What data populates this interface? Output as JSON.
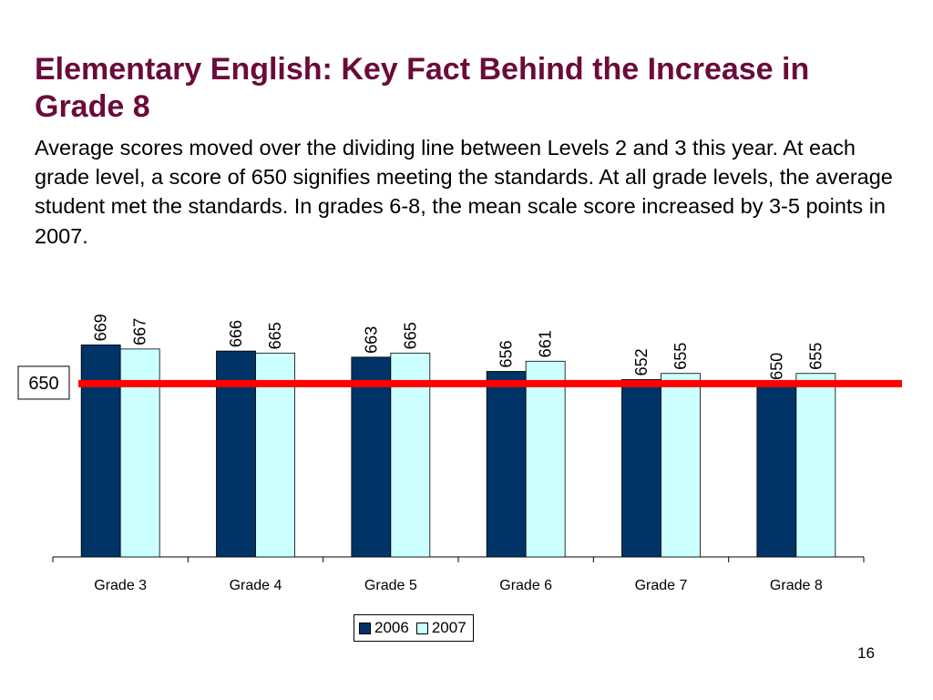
{
  "slide": {
    "title": "Elementary English: Key Fact Behind the Increase in Grade 8",
    "body": "Average scores moved over the dividing line between Levels 2 and 3 this year. At each grade level, a score of 650 signifies meeting the standards. At all grade levels, the average student met the standards. In grades 6-8, the mean scale score increased by 3-5 points in 2007.",
    "page_number": "16"
  },
  "chart_data": {
    "type": "bar",
    "categories": [
      "Grade 3",
      "Grade 4",
      "Grade 5",
      "Grade 6",
      "Grade 7",
      "Grade 8"
    ],
    "series": [
      {
        "name": "2006",
        "values": [
          669,
          666,
          663,
          656,
          652,
          650
        ],
        "labels": [
          "669",
          "666",
          "663",
          "656",
          "652",
          "650"
        ],
        "color": "#003366"
      },
      {
        "name": "2007",
        "values": [
          667,
          665,
          665,
          661,
          655,
          655
        ],
        "labels": [
          "667",
          "665",
          "665",
          "661",
          "655",
          "655"
        ],
        "color": "#ccffff"
      }
    ],
    "reference_line": {
      "value": 650,
      "label": "650",
      "color": "#ff0000"
    },
    "ylim": [
      565,
      675
    ],
    "grid": false,
    "legend_position": "bottom"
  }
}
